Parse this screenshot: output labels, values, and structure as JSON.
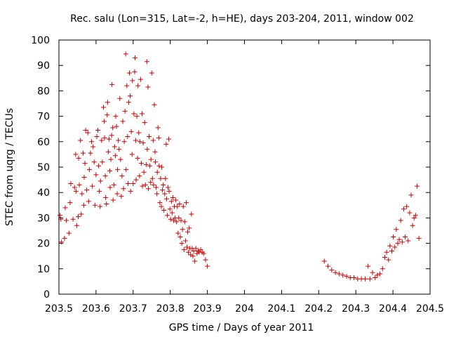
{
  "chart_data": {
    "type": "scatter",
    "title": "Rec. salu (Lon=315, Lat=-2, h=HE), days 203-204, 2011, window 002",
    "xlabel": "GPS time / Days of year 2011",
    "ylabel": "STEC from uqrg / TECUs",
    "xlim": [
      203.5,
      204.5
    ],
    "ylim": [
      0,
      100
    ],
    "xticks": [
      203.5,
      203.6,
      203.7,
      203.8,
      203.9,
      204,
      204.1,
      204.2,
      204.3,
      204.4,
      204.5
    ],
    "xtick_labels": [
      "203.5",
      "203.6",
      "203.7",
      "203.8",
      "203.9",
      "204",
      "204.1",
      "204.2",
      "204.3",
      "204.4",
      "204.5"
    ],
    "yticks": [
      0,
      10,
      20,
      30,
      40,
      50,
      60,
      70,
      80,
      90,
      100
    ],
    "ytick_labels": [
      "0",
      "10",
      "20",
      "30",
      "40",
      "50",
      "60",
      "70",
      "80",
      "90",
      "100"
    ],
    "grid": false,
    "marker": "+",
    "marker_color": "#cc0000",
    "points": [
      [
        203.503,
        31.0
      ],
      [
        203.505,
        29.5
      ],
      [
        203.507,
        20.5
      ],
      [
        203.515,
        22.0
      ],
      [
        203.517,
        34.0
      ],
      [
        203.52,
        29.0
      ],
      [
        203.527,
        24.0
      ],
      [
        203.53,
        36.0
      ],
      [
        203.532,
        43.5
      ],
      [
        203.538,
        29.5
      ],
      [
        203.542,
        42.0
      ],
      [
        203.545,
        55.0
      ],
      [
        203.546,
        40.5
      ],
      [
        203.548,
        27.0
      ],
      [
        203.552,
        30.5
      ],
      [
        203.553,
        53.5
      ],
      [
        203.555,
        43.0
      ],
      [
        203.558,
        60.5
      ],
      [
        203.56,
        31.5
      ],
      [
        203.562,
        39.5
      ],
      [
        203.565,
        55.5
      ],
      [
        203.567,
        35.0
      ],
      [
        203.568,
        46.0
      ],
      [
        203.57,
        51.5
      ],
      [
        203.572,
        64.5
      ],
      [
        203.575,
        41.0
      ],
      [
        203.578,
        63.5
      ],
      [
        203.58,
        36.5
      ],
      [
        203.582,
        49.0
      ],
      [
        203.585,
        55.5
      ],
      [
        203.588,
        60.0
      ],
      [
        203.59,
        42.5
      ],
      [
        203.592,
        58.0
      ],
      [
        203.595,
        52.0
      ],
      [
        203.597,
        35.0
      ],
      [
        203.6,
        47.0
      ],
      [
        203.602,
        62.0
      ],
      [
        203.605,
        64.5
      ],
      [
        203.607,
        50.5
      ],
      [
        203.609,
        40.5
      ],
      [
        203.611,
        34.5
      ],
      [
        203.612,
        44.5
      ],
      [
        203.615,
        60.5
      ],
      [
        203.617,
        52.0
      ],
      [
        203.62,
        73.5
      ],
      [
        203.622,
        68.0
      ],
      [
        203.623,
        61.5
      ],
      [
        203.625,
        46.5
      ],
      [
        203.626,
        38.0
      ],
      [
        203.628,
        35.5
      ],
      [
        203.63,
        70.5
      ],
      [
        203.631,
        75.5
      ],
      [
        203.633,
        56.0
      ],
      [
        203.635,
        61.0
      ],
      [
        203.637,
        48.5
      ],
      [
        203.638,
        42.0
      ],
      [
        203.64,
        53.0
      ],
      [
        203.642,
        62.5
      ],
      [
        203.643,
        82.5
      ],
      [
        203.645,
        65.5
      ],
      [
        203.646,
        37.0
      ],
      [
        203.648,
        43.0
      ],
      [
        203.65,
        58.0
      ],
      [
        203.652,
        54.5
      ],
      [
        203.653,
        70.0
      ],
      [
        203.655,
        66.0
      ],
      [
        203.657,
        39.5
      ],
      [
        203.658,
        49.0
      ],
      [
        203.66,
        60.5
      ],
      [
        203.662,
        57.0
      ],
      [
        203.664,
        77.0
      ],
      [
        203.666,
        53.0
      ],
      [
        203.668,
        38.5
      ],
      [
        203.67,
        46.5
      ],
      [
        203.672,
        68.0
      ],
      [
        203.674,
        41.5
      ],
      [
        203.676,
        60.0
      ],
      [
        203.678,
        72.0
      ],
      [
        203.68,
        94.5
      ],
      [
        203.681,
        49.0
      ],
      [
        203.683,
        82.0
      ],
      [
        203.685,
        62.0
      ],
      [
        203.686,
        43.5
      ],
      [
        203.688,
        75.5
      ],
      [
        203.69,
        87.0
      ],
      [
        203.692,
        78.0
      ],
      [
        203.693,
        40.5
      ],
      [
        203.695,
        64.0
      ],
      [
        203.697,
        55.0
      ],
      [
        203.698,
        84.0
      ],
      [
        203.7,
        43.5
      ],
      [
        203.702,
        71.0
      ],
      [
        203.704,
        87.5
      ],
      [
        203.705,
        93.0
      ],
      [
        203.707,
        60.5
      ],
      [
        203.708,
        45.0
      ],
      [
        203.71,
        70.0
      ],
      [
        203.712,
        53.5
      ],
      [
        203.713,
        82.0
      ],
      [
        203.715,
        63.5
      ],
      [
        203.717,
        46.5
      ],
      [
        203.718,
        60.0
      ],
      [
        203.72,
        84.5
      ],
      [
        203.722,
        51.5
      ],
      [
        203.724,
        71.0
      ],
      [
        203.725,
        42.5
      ],
      [
        203.727,
        59.5
      ],
      [
        203.729,
        48.0
      ],
      [
        203.731,
        67.5
      ],
      [
        203.733,
        43.0
      ],
      [
        203.735,
        51.0
      ],
      [
        203.737,
        91.5
      ],
      [
        203.738,
        57.0
      ],
      [
        203.74,
        81.5
      ],
      [
        203.741,
        41.5
      ],
      [
        203.743,
        62.0
      ],
      [
        203.745,
        50.5
      ],
      [
        203.747,
        44.0
      ],
      [
        203.748,
        53.0
      ],
      [
        203.75,
        87.0
      ],
      [
        203.752,
        45.5
      ],
      [
        203.754,
        60.5
      ],
      [
        203.755,
        43.0
      ],
      [
        203.757,
        74.5
      ],
      [
        203.759,
        56.0
      ],
      [
        203.76,
        52.0
      ],
      [
        203.762,
        42.0
      ],
      [
        203.764,
        39.5
      ],
      [
        203.765,
        48.0
      ],
      [
        203.767,
        65.5
      ],
      [
        203.769,
        61.5
      ],
      [
        203.77,
        50.5
      ],
      [
        203.772,
        36.0
      ],
      [
        203.774,
        45.5
      ],
      [
        203.776,
        34.5
      ],
      [
        203.777,
        50.0
      ],
      [
        203.779,
        41.0
      ],
      [
        203.781,
        43.0
      ],
      [
        203.783,
        33.0
      ],
      [
        203.785,
        39.5
      ],
      [
        203.787,
        45.5
      ],
      [
        203.789,
        59.0
      ],
      [
        203.79,
        37.5
      ],
      [
        203.792,
        31.0
      ],
      [
        203.794,
        42.0
      ],
      [
        203.796,
        61.0
      ],
      [
        203.797,
        40.5
      ],
      [
        203.799,
        33.5
      ],
      [
        203.801,
        29.5
      ],
      [
        203.803,
        36.5
      ],
      [
        203.805,
        32.0
      ],
      [
        203.807,
        38.0
      ],
      [
        203.809,
        29.0
      ],
      [
        203.811,
        34.5
      ],
      [
        203.813,
        30.0
      ],
      [
        203.815,
        37.0
      ],
      [
        203.817,
        28.5
      ],
      [
        203.819,
        34.5
      ],
      [
        203.821,
        24.0
      ],
      [
        203.823,
        30.0
      ],
      [
        203.825,
        35.5
      ],
      [
        203.827,
        22.5
      ],
      [
        203.829,
        29.0
      ],
      [
        203.831,
        20.0
      ],
      [
        203.833,
        25.5
      ],
      [
        203.835,
        34.5
      ],
      [
        203.837,
        17.5
      ],
      [
        203.839,
        28.5
      ],
      [
        203.841,
        21.0
      ],
      [
        203.843,
        36.0
      ],
      [
        203.845,
        18.5
      ],
      [
        203.847,
        24.5
      ],
      [
        203.849,
        16.5
      ],
      [
        203.851,
        26.0
      ],
      [
        203.853,
        18.0
      ],
      [
        203.855,
        15.5
      ],
      [
        203.857,
        31.5
      ],
      [
        203.859,
        18.0
      ],
      [
        203.861,
        15.0
      ],
      [
        203.863,
        17.0
      ],
      [
        203.866,
        13.0
      ],
      [
        203.869,
        18.0
      ],
      [
        203.872,
        16.0
      ],
      [
        203.875,
        17.0
      ],
      [
        203.878,
        16.5
      ],
      [
        203.882,
        17.5
      ],
      [
        203.886,
        16.5
      ],
      [
        203.89,
        16.0
      ],
      [
        203.895,
        13.5
      ],
      [
        203.9,
        11.0
      ],
      [
        204.215,
        13.0
      ],
      [
        204.225,
        11.0
      ],
      [
        204.235,
        9.5
      ],
      [
        204.245,
        8.5
      ],
      [
        204.255,
        8.0
      ],
      [
        204.265,
        7.5
      ],
      [
        204.275,
        7.0
      ],
      [
        204.285,
        6.5
      ],
      [
        204.295,
        6.5
      ],
      [
        204.305,
        6.0
      ],
      [
        204.315,
        6.0
      ],
      [
        204.325,
        6.0
      ],
      [
        204.333,
        11.0
      ],
      [
        204.338,
        6.0
      ],
      [
        204.345,
        8.5
      ],
      [
        204.352,
        6.5
      ],
      [
        204.358,
        7.5
      ],
      [
        204.365,
        8.0
      ],
      [
        204.372,
        10.0
      ],
      [
        204.378,
        14.5
      ],
      [
        204.383,
        16.5
      ],
      [
        204.388,
        13.5
      ],
      [
        204.392,
        19.0
      ],
      [
        204.397,
        17.0
      ],
      [
        204.401,
        22.5
      ],
      [
        204.405,
        18.5
      ],
      [
        204.409,
        25.5
      ],
      [
        204.413,
        20.0
      ],
      [
        204.417,
        21.5
      ],
      [
        204.421,
        29.0
      ],
      [
        204.425,
        20.5
      ],
      [
        204.429,
        33.5
      ],
      [
        204.433,
        22.5
      ],
      [
        204.437,
        34.5
      ],
      [
        204.441,
        21.0
      ],
      [
        204.445,
        32.0
      ],
      [
        204.449,
        39.0
      ],
      [
        204.453,
        27.0
      ],
      [
        204.457,
        30.0
      ],
      [
        204.461,
        31.0
      ],
      [
        204.465,
        42.5
      ],
      [
        204.47,
        22.0
      ]
    ]
  }
}
